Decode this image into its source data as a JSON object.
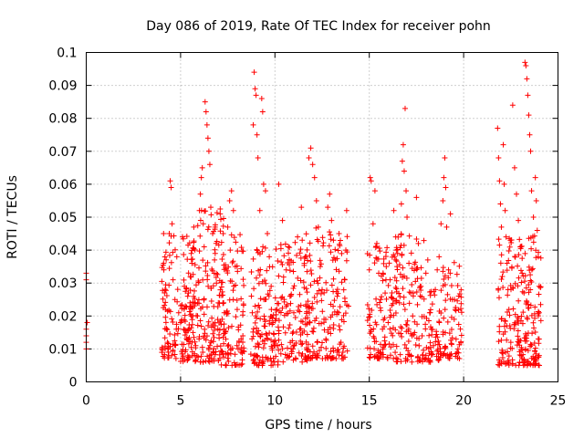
{
  "chart_data": {
    "type": "scatter",
    "title": "Day 086 of 2019, Rate Of TEC Index for receiver pohn",
    "xlabel": "GPS time / hours",
    "ylabel": "ROTI / TECUs",
    "xlim": [
      0,
      25
    ],
    "ylim": [
      0,
      0.1
    ],
    "x_ticks": [
      0,
      5,
      10,
      15,
      20,
      25
    ],
    "x_tick_labels": [
      "0",
      "5",
      "10",
      "15",
      "20",
      "25"
    ],
    "y_ticks": [
      0,
      0.01,
      0.02,
      0.03,
      0.04,
      0.05,
      0.06,
      0.07,
      0.08,
      0.09,
      0.1
    ],
    "y_tick_labels": [
      "0",
      "0.01",
      "0.02",
      "0.03",
      "0.04",
      "0.05",
      "0.06",
      "0.07",
      "0.08",
      "0.09",
      "0.1"
    ],
    "grid": true,
    "marker": "+",
    "marker_color": "#ff0000",
    "series": [
      {
        "name": "ROTI",
        "points": [
          [
            0.0,
            0.033
          ],
          [
            0.0,
            0.031
          ],
          [
            0.0,
            0.016
          ],
          [
            0.0,
            0.014
          ],
          [
            0.0,
            0.012
          ],
          [
            0.0,
            0.01
          ],
          [
            0.05,
            0.018
          ],
          [
            4.1,
            0.045
          ],
          [
            4.1,
            0.036
          ],
          [
            4.15,
            0.027
          ],
          [
            4.2,
            0.022
          ],
          [
            4.25,
            0.016
          ],
          [
            4.3,
            0.012
          ],
          [
            4.35,
            0.009
          ],
          [
            4.4,
            0.045
          ],
          [
            4.45,
            0.061
          ],
          [
            4.5,
            0.059
          ],
          [
            4.55,
            0.048
          ],
          [
            4.6,
            0.031
          ],
          [
            4.7,
            0.025
          ],
          [
            4.8,
            0.038
          ],
          [
            4.9,
            0.021
          ],
          [
            5.0,
            0.018
          ],
          [
            5.1,
            0.044
          ],
          [
            5.2,
            0.029
          ],
          [
            5.3,
            0.015
          ],
          [
            5.4,
            0.013
          ],
          [
            5.5,
            0.024
          ],
          [
            5.6,
            0.036
          ],
          [
            5.7,
            0.047
          ],
          [
            5.8,
            0.011
          ],
          [
            5.9,
            0.02
          ],
          [
            6.0,
            0.052
          ],
          [
            6.05,
            0.057
          ],
          [
            6.1,
            0.062
          ],
          [
            6.15,
            0.065
          ],
          [
            6.2,
            0.048
          ],
          [
            6.25,
            0.041
          ],
          [
            6.3,
            0.085
          ],
          [
            6.35,
            0.082
          ],
          [
            6.4,
            0.078
          ],
          [
            6.45,
            0.074
          ],
          [
            6.5,
            0.07
          ],
          [
            6.55,
            0.066
          ],
          [
            6.6,
            0.053
          ],
          [
            6.7,
            0.045
          ],
          [
            6.8,
            0.037
          ],
          [
            6.9,
            0.03
          ],
          [
            7.0,
            0.024
          ],
          [
            7.1,
            0.051
          ],
          [
            7.2,
            0.019
          ],
          [
            7.3,
            0.016
          ],
          [
            7.4,
            0.013
          ],
          [
            7.5,
            0.047
          ],
          [
            7.6,
            0.055
          ],
          [
            7.7,
            0.058
          ],
          [
            7.8,
            0.052
          ],
          [
            7.9,
            0.035
          ],
          [
            8.0,
            0.022
          ],
          [
            8.1,
            0.012
          ],
          [
            8.2,
            0.009
          ],
          [
            8.3,
            0.014
          ],
          [
            8.8,
            0.021
          ],
          [
            8.85,
            0.078
          ],
          [
            8.9,
            0.094
          ],
          [
            8.95,
            0.089
          ],
          [
            9.0,
            0.087
          ],
          [
            9.05,
            0.075
          ],
          [
            9.1,
            0.068
          ],
          [
            9.2,
            0.052
          ],
          [
            9.3,
            0.086
          ],
          [
            9.35,
            0.082
          ],
          [
            9.4,
            0.06
          ],
          [
            9.5,
            0.058
          ],
          [
            9.6,
            0.045
          ],
          [
            9.7,
            0.038
          ],
          [
            9.8,
            0.029
          ],
          [
            9.9,
            0.018
          ],
          [
            10.0,
            0.011
          ],
          [
            10.2,
            0.06
          ],
          [
            10.4,
            0.049
          ],
          [
            10.6,
            0.034
          ],
          [
            10.8,
            0.026
          ],
          [
            11.0,
            0.021
          ],
          [
            11.2,
            0.044
          ],
          [
            11.4,
            0.053
          ],
          [
            11.6,
            0.038
          ],
          [
            11.8,
            0.068
          ],
          [
            11.9,
            0.071
          ],
          [
            12.0,
            0.066
          ],
          [
            12.1,
            0.062
          ],
          [
            12.2,
            0.055
          ],
          [
            12.3,
            0.047
          ],
          [
            12.4,
            0.035
          ],
          [
            12.5,
            0.028
          ],
          [
            12.6,
            0.019
          ],
          [
            12.7,
            0.013
          ],
          [
            12.8,
            0.053
          ],
          [
            12.9,
            0.057
          ],
          [
            13.0,
            0.049
          ],
          [
            13.1,
            0.043
          ],
          [
            13.2,
            0.037
          ],
          [
            13.3,
            0.026
          ],
          [
            13.4,
            0.017
          ],
          [
            13.5,
            0.012
          ],
          [
            13.6,
            0.009
          ],
          [
            13.7,
            0.031
          ],
          [
            13.8,
            0.052
          ],
          [
            13.9,
            0.023
          ],
          [
            15.0,
            0.034
          ],
          [
            15.05,
            0.062
          ],
          [
            15.1,
            0.061
          ],
          [
            15.2,
            0.048
          ],
          [
            15.3,
            0.058
          ],
          [
            15.4,
            0.042
          ],
          [
            15.5,
            0.033
          ],
          [
            15.6,
            0.025
          ],
          [
            15.7,
            0.016
          ],
          [
            15.8,
            0.011
          ],
          [
            15.9,
            0.035
          ],
          [
            16.0,
            0.018
          ],
          [
            16.1,
            0.031
          ],
          [
            16.2,
            0.027
          ],
          [
            16.3,
            0.052
          ],
          [
            16.4,
            0.044
          ],
          [
            16.5,
            0.039
          ],
          [
            16.6,
            0.024
          ],
          [
            16.7,
            0.054
          ],
          [
            16.75,
            0.067
          ],
          [
            16.8,
            0.072
          ],
          [
            16.85,
            0.064
          ],
          [
            16.9,
            0.083
          ],
          [
            16.95,
            0.058
          ],
          [
            17.0,
            0.05
          ],
          [
            17.1,
            0.036
          ],
          [
            17.2,
            0.027
          ],
          [
            17.3,
            0.02
          ],
          [
            17.4,
            0.015
          ],
          [
            17.5,
            0.056
          ],
          [
            17.6,
            0.042
          ],
          [
            17.7,
            0.029
          ],
          [
            17.8,
            0.014
          ],
          [
            18.0,
            0.033
          ],
          [
            18.1,
            0.037
          ],
          [
            18.2,
            0.021
          ],
          [
            18.3,
            0.016
          ],
          [
            18.4,
            0.011
          ],
          [
            18.5,
            0.028
          ],
          [
            18.6,
            0.034
          ],
          [
            18.7,
            0.038
          ],
          [
            18.8,
            0.048
          ],
          [
            18.9,
            0.055
          ],
          [
            18.95,
            0.062
          ],
          [
            19.0,
            0.068
          ],
          [
            19.05,
            0.059
          ],
          [
            19.1,
            0.047
          ],
          [
            19.2,
            0.034
          ],
          [
            19.3,
            0.051
          ],
          [
            19.4,
            0.025
          ],
          [
            19.5,
            0.019
          ],
          [
            19.6,
            0.013
          ],
          [
            19.7,
            0.01
          ],
          [
            21.8,
            0.077
          ],
          [
            21.85,
            0.068
          ],
          [
            21.9,
            0.061
          ],
          [
            21.95,
            0.054
          ],
          [
            22.0,
            0.047
          ],
          [
            22.05,
            0.032
          ],
          [
            22.1,
            0.072
          ],
          [
            22.15,
            0.06
          ],
          [
            22.2,
            0.052
          ],
          [
            22.25,
            0.044
          ],
          [
            22.3,
            0.036
          ],
          [
            22.35,
            0.028
          ],
          [
            22.4,
            0.022
          ],
          [
            22.45,
            0.017
          ],
          [
            22.5,
            0.012
          ],
          [
            22.6,
            0.084
          ],
          [
            22.7,
            0.065
          ],
          [
            22.8,
            0.057
          ],
          [
            22.9,
            0.049
          ],
          [
            23.0,
            0.041
          ],
          [
            23.1,
            0.033
          ],
          [
            23.2,
            0.027
          ],
          [
            23.25,
            0.097
          ],
          [
            23.3,
            0.096
          ],
          [
            23.35,
            0.092
          ],
          [
            23.4,
            0.087
          ],
          [
            23.45,
            0.081
          ],
          [
            23.5,
            0.075
          ],
          [
            23.55,
            0.07
          ],
          [
            23.6,
            0.058
          ],
          [
            23.7,
            0.05
          ],
          [
            23.8,
            0.062
          ],
          [
            23.85,
            0.055
          ],
          [
            23.9,
            0.046
          ],
          [
            23.95,
            0.038
          ],
          [
            24.0,
            0.029
          ],
          [
            24.0,
            0.021
          ],
          [
            24.0,
            0.013
          ],
          [
            24.0,
            0.008
          ]
        ],
        "bands": [
          [
            4.0,
            4.9,
            0.007,
            0.046,
            70
          ],
          [
            5.0,
            5.9,
            0.006,
            0.045,
            110
          ],
          [
            5.9,
            7.3,
            0.006,
            0.053,
            140
          ],
          [
            7.0,
            8.4,
            0.005,
            0.045,
            100
          ],
          [
            8.7,
            10.3,
            0.005,
            0.042,
            140
          ],
          [
            10.3,
            11.9,
            0.006,
            0.043,
            120
          ],
          [
            11.6,
            13.9,
            0.007,
            0.047,
            160
          ],
          [
            14.9,
            16.5,
            0.007,
            0.043,
            110
          ],
          [
            16.4,
            17.9,
            0.006,
            0.045,
            110
          ],
          [
            17.9,
            18.9,
            0.006,
            0.028,
            60
          ],
          [
            18.9,
            19.9,
            0.007,
            0.038,
            70
          ],
          [
            21.8,
            24.1,
            0.005,
            0.045,
            220
          ]
        ]
      }
    ]
  }
}
